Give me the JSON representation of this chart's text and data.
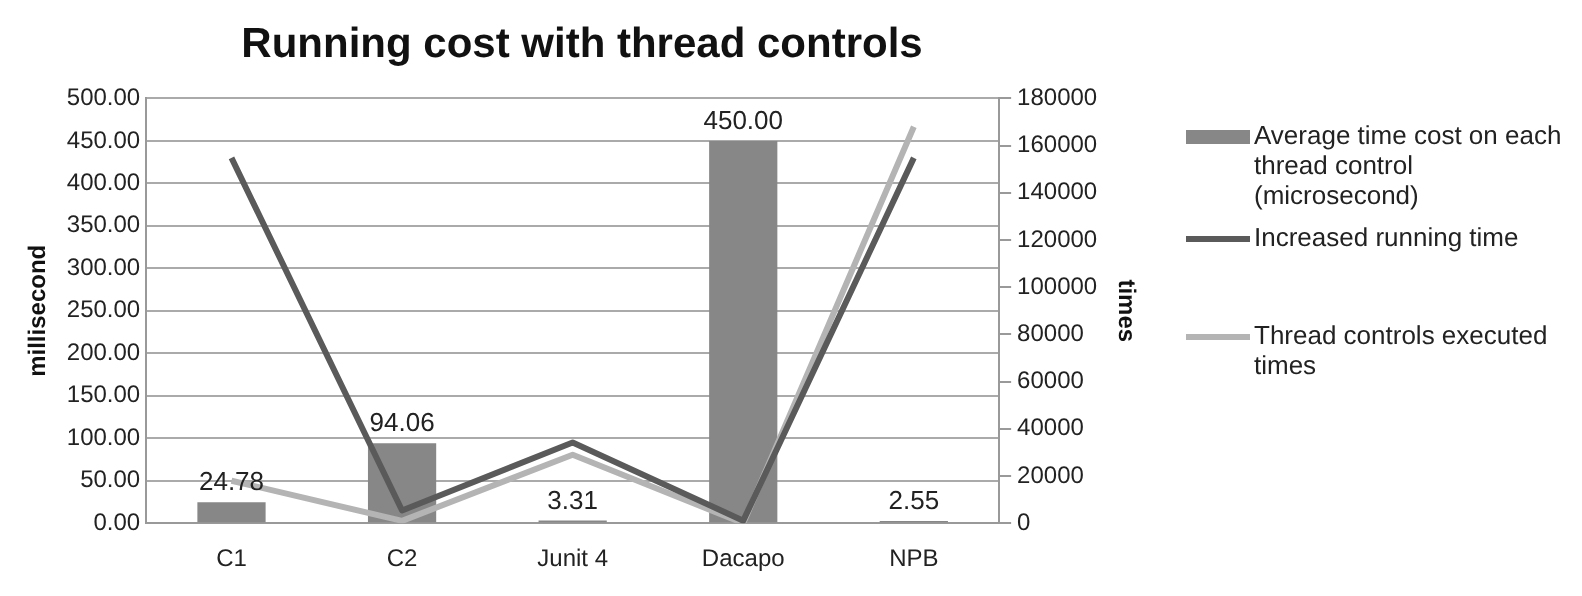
{
  "chart_data": {
    "type": "bar",
    "title": "Running cost with thread controls",
    "ylabel": "millisecond",
    "y2label": "times",
    "categories": [
      "C1",
      "C2",
      "Junit 4",
      "Dacapo",
      "NPB"
    ],
    "series": [
      {
        "name": "Average time cost on each thread control (microsecond)",
        "color": "#878787",
        "values": [
          24.78,
          94.06,
          3.31,
          450.0,
          2.55
        ],
        "value_labels": [
          "24.78",
          "94.06",
          "3.31",
          "450.00",
          "2.55"
        ]
      },
      {
        "name": "Increased running time",
        "type": "line",
        "color": "#5a5a5a",
        "values": [
          430,
          15,
          95,
          3,
          430
        ]
      },
      {
        "name": "Thread controls executed times",
        "type": "line",
        "color": "#b4b4b4",
        "axis": "y2",
        "values": [
          18000,
          1000,
          29000,
          0,
          168000
        ]
      }
    ],
    "ylim": [
      0,
      500
    ],
    "yticks": [
      {
        "value": 0,
        "label": "0.00"
      },
      {
        "value": 50,
        "label": "50.00"
      },
      {
        "value": 100,
        "label": "100.00"
      },
      {
        "value": 150,
        "label": "150.00"
      },
      {
        "value": 200,
        "label": "200.00"
      },
      {
        "value": 250,
        "label": "250.00"
      },
      {
        "value": 300,
        "label": "300.00"
      },
      {
        "value": 350,
        "label": "350.00"
      },
      {
        "value": 400,
        "label": "400.00"
      },
      {
        "value": 450,
        "label": "450.00"
      },
      {
        "value": 500,
        "label": "500.00"
      }
    ],
    "y2lim": [
      0,
      180000
    ],
    "y2ticks": [
      0,
      20000,
      40000,
      60000,
      80000,
      100000,
      120000,
      140000,
      160000,
      180000
    ],
    "grid": "y",
    "legend": "right",
    "marker": "none",
    "line_style": "solid"
  }
}
